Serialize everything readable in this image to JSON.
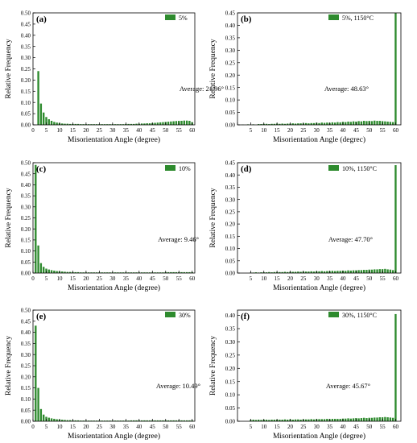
{
  "style": {
    "bar_color": "#2e8b2e"
  },
  "x_label": "Misorientation Angle (degree)",
  "x_label_b": "Misorientation Angle (degrec)",
  "y_label": "Relative Frequency",
  "x_ticks": [
    0,
    5,
    10,
    15,
    20,
    25,
    30,
    35,
    40,
    45,
    50,
    55,
    60
  ],
  "chart_data": [
    {
      "panel": "(a)",
      "type": "bar",
      "legend": "5%",
      "annotation": "Average: 21.96°",
      "xlim": [
        0,
        61
      ],
      "ylim": [
        0,
        0.5
      ],
      "yticks": [
        0.0,
        0.05,
        0.1,
        0.15,
        0.2,
        0.25,
        0.3,
        0.35,
        0.4,
        0.45,
        0.5
      ],
      "x": [
        2,
        3,
        4,
        5,
        6,
        7,
        8,
        9,
        10,
        11,
        12,
        13,
        14,
        15,
        16,
        17,
        18,
        19,
        20,
        21,
        22,
        23,
        24,
        25,
        26,
        27,
        28,
        29,
        30,
        31,
        32,
        33,
        34,
        35,
        36,
        37,
        38,
        39,
        40,
        41,
        42,
        43,
        44,
        45,
        46,
        47,
        48,
        49,
        50,
        51,
        52,
        53,
        54,
        55,
        56,
        57,
        58,
        59,
        60
      ],
      "values": [
        0.24,
        0.095,
        0.055,
        0.035,
        0.025,
        0.018,
        0.013,
        0.01,
        0.008,
        0.006,
        0.005,
        0.005,
        0.004,
        0.004,
        0.004,
        0.004,
        0.003,
        0.003,
        0.003,
        0.003,
        0.003,
        0.003,
        0.003,
        0.003,
        0.003,
        0.003,
        0.003,
        0.003,
        0.003,
        0.003,
        0.003,
        0.003,
        0.003,
        0.004,
        0.004,
        0.004,
        0.004,
        0.005,
        0.005,
        0.006,
        0.006,
        0.007,
        0.007,
        0.008,
        0.009,
        0.01,
        0.011,
        0.012,
        0.013,
        0.014,
        0.015,
        0.016,
        0.017,
        0.018,
        0.018,
        0.019,
        0.019,
        0.018,
        0.012
      ]
    },
    {
      "panel": "(b)",
      "type": "bar",
      "legend": "5%, 1150°C",
      "annotation": "Average: 48.63°",
      "xlim": [
        0,
        62
      ],
      "ylim": [
        0,
        0.45
      ],
      "yticks": [
        0.0,
        0.05,
        0.1,
        0.15,
        0.2,
        0.25,
        0.3,
        0.35,
        0.4,
        0.45
      ],
      "x": [
        2,
        4,
        6,
        8,
        9,
        10,
        11,
        12,
        13,
        14,
        15,
        16,
        17,
        18,
        19,
        20,
        21,
        22,
        23,
        24,
        25,
        26,
        27,
        28,
        29,
        30,
        31,
        32,
        33,
        34,
        35,
        36,
        37,
        38,
        39,
        40,
        41,
        42,
        43,
        44,
        45,
        46,
        47,
        48,
        49,
        50,
        51,
        52,
        53,
        54,
        55,
        56,
        57,
        58,
        59,
        60
      ],
      "values": [
        0.001,
        0.002,
        0.002,
        0.003,
        0.003,
        0.004,
        0.004,
        0.003,
        0.004,
        0.004,
        0.005,
        0.004,
        0.005,
        0.004,
        0.005,
        0.005,
        0.006,
        0.005,
        0.006,
        0.006,
        0.006,
        0.007,
        0.006,
        0.007,
        0.007,
        0.008,
        0.007,
        0.009,
        0.008,
        0.009,
        0.008,
        0.01,
        0.009,
        0.011,
        0.01,
        0.012,
        0.011,
        0.013,
        0.012,
        0.014,
        0.013,
        0.015,
        0.014,
        0.016,
        0.015,
        0.016,
        0.015,
        0.017,
        0.016,
        0.016,
        0.015,
        0.014,
        0.013,
        0.012,
        0.011,
        0.45
      ]
    },
    {
      "panel": "(c)",
      "type": "bar",
      "legend": "10%",
      "annotation": "Average: 9.46°",
      "xlim": [
        0,
        61
      ],
      "ylim": [
        0,
        0.5
      ],
      "yticks": [
        0.0,
        0.05,
        0.1,
        0.15,
        0.2,
        0.25,
        0.3,
        0.35,
        0.4,
        0.45,
        0.5
      ],
      "x": [
        1,
        2,
        3,
        4,
        5,
        6,
        7,
        8,
        9,
        10,
        11,
        12,
        13,
        14,
        15,
        16,
        17,
        18,
        19,
        20,
        21,
        22,
        23,
        24,
        25,
        26,
        27,
        28,
        29,
        30,
        31,
        32,
        33,
        34,
        35,
        36,
        37,
        38,
        39,
        40,
        41,
        42,
        43,
        44,
        45,
        46,
        47,
        48,
        49,
        50,
        51,
        52,
        53,
        54,
        55,
        56,
        57,
        58,
        59,
        60
      ],
      "values": [
        0.49,
        0.125,
        0.045,
        0.028,
        0.02,
        0.016,
        0.013,
        0.011,
        0.009,
        0.008,
        0.007,
        0.006,
        0.005,
        0.005,
        0.004,
        0.004,
        0.004,
        0.003,
        0.003,
        0.003,
        0.003,
        0.003,
        0.003,
        0.003,
        0.003,
        0.003,
        0.003,
        0.003,
        0.003,
        0.003,
        0.003,
        0.003,
        0.003,
        0.003,
        0.003,
        0.003,
        0.003,
        0.003,
        0.003,
        0.003,
        0.003,
        0.003,
        0.003,
        0.003,
        0.003,
        0.003,
        0.003,
        0.003,
        0.003,
        0.004,
        0.004,
        0.004,
        0.004,
        0.004,
        0.004,
        0.004,
        0.004,
        0.004,
        0.004,
        0.004
      ]
    },
    {
      "panel": "(d)",
      "type": "bar",
      "legend": "10%, 1150°C",
      "annotation": "Average: 47.70°",
      "xlim": [
        0,
        62
      ],
      "ylim": [
        0,
        0.45
      ],
      "yticks": [
        0.0,
        0.05,
        0.1,
        0.15,
        0.2,
        0.25,
        0.3,
        0.35,
        0.4,
        0.45
      ],
      "x": [
        5,
        6,
        7,
        8,
        9,
        10,
        11,
        12,
        13,
        14,
        15,
        16,
        17,
        18,
        19,
        20,
        21,
        22,
        23,
        24,
        25,
        26,
        27,
        28,
        29,
        30,
        31,
        32,
        33,
        34,
        35,
        36,
        37,
        38,
        39,
        40,
        41,
        42,
        43,
        44,
        45,
        46,
        47,
        48,
        49,
        50,
        51,
        52,
        53,
        54,
        55,
        56,
        57,
        58,
        59,
        60
      ],
      "values": [
        0.002,
        0.002,
        0.003,
        0.002,
        0.003,
        0.003,
        0.003,
        0.004,
        0.003,
        0.004,
        0.004,
        0.004,
        0.004,
        0.005,
        0.004,
        0.005,
        0.005,
        0.005,
        0.006,
        0.005,
        0.006,
        0.006,
        0.006,
        0.007,
        0.006,
        0.007,
        0.007,
        0.008,
        0.007,
        0.008,
        0.008,
        0.009,
        0.008,
        0.009,
        0.009,
        0.01,
        0.009,
        0.011,
        0.01,
        0.011,
        0.011,
        0.012,
        0.012,
        0.013,
        0.013,
        0.014,
        0.014,
        0.015,
        0.015,
        0.016,
        0.016,
        0.017,
        0.015,
        0.014,
        0.012,
        0.44
      ]
    },
    {
      "panel": "(e)",
      "type": "bar",
      "legend": "30%",
      "annotation": "Average: 10.49°",
      "xlim": [
        0,
        61
      ],
      "ylim": [
        0,
        0.5
      ],
      "yticks": [
        0.0,
        0.05,
        0.1,
        0.15,
        0.2,
        0.25,
        0.3,
        0.35,
        0.4,
        0.45,
        0.5
      ],
      "x": [
        1,
        2,
        3,
        4,
        5,
        6,
        7,
        8,
        9,
        10,
        11,
        12,
        13,
        14,
        15,
        16,
        17,
        18,
        19,
        20,
        21,
        22,
        23,
        24,
        25,
        26,
        27,
        28,
        29,
        30,
        31,
        32,
        33,
        34,
        35,
        36,
        37,
        38,
        39,
        40,
        41,
        42,
        43,
        44,
        45,
        46,
        47,
        48,
        49,
        50,
        51,
        52,
        53,
        54,
        55,
        56,
        57,
        58,
        59,
        60
      ],
      "values": [
        0.43,
        0.15,
        0.055,
        0.03,
        0.02,
        0.016,
        0.013,
        0.011,
        0.009,
        0.008,
        0.007,
        0.006,
        0.005,
        0.005,
        0.004,
        0.004,
        0.004,
        0.003,
        0.003,
        0.003,
        0.003,
        0.003,
        0.003,
        0.003,
        0.003,
        0.003,
        0.003,
        0.003,
        0.003,
        0.003,
        0.003,
        0.003,
        0.003,
        0.003,
        0.003,
        0.003,
        0.004,
        0.004,
        0.004,
        0.004,
        0.004,
        0.004,
        0.004,
        0.004,
        0.004,
        0.004,
        0.004,
        0.004,
        0.004,
        0.004,
        0.004,
        0.004,
        0.004,
        0.004,
        0.004,
        0.004,
        0.004,
        0.004,
        0.004,
        0.004
      ]
    },
    {
      "panel": "(f)",
      "type": "bar",
      "legend": "30%, 1150°C",
      "annotation": "Average: 45.67°",
      "xlim": [
        0,
        62
      ],
      "ylim": [
        0,
        0.42
      ],
      "yticks": [
        0.0,
        0.05,
        0.1,
        0.15,
        0.2,
        0.25,
        0.3,
        0.35,
        0.4
      ],
      "x": [
        5,
        6,
        7,
        8,
        9,
        10,
        11,
        12,
        13,
        14,
        15,
        16,
        17,
        18,
        19,
        20,
        21,
        22,
        23,
        24,
        25,
        26,
        27,
        28,
        29,
        30,
        31,
        32,
        33,
        34,
        35,
        36,
        37,
        38,
        39,
        40,
        41,
        42,
        43,
        44,
        45,
        46,
        47,
        48,
        49,
        50,
        51,
        52,
        53,
        54,
        55,
        56,
        57,
        58,
        59,
        60
      ],
      "values": [
        0.005,
        0.006,
        0.005,
        0.006,
        0.005,
        0.006,
        0.006,
        0.005,
        0.006,
        0.006,
        0.006,
        0.006,
        0.006,
        0.007,
        0.006,
        0.007,
        0.006,
        0.007,
        0.007,
        0.006,
        0.007,
        0.007,
        0.007,
        0.008,
        0.007,
        0.008,
        0.008,
        0.008,
        0.008,
        0.009,
        0.008,
        0.009,
        0.009,
        0.009,
        0.009,
        0.01,
        0.01,
        0.011,
        0.01,
        0.011,
        0.012,
        0.011,
        0.012,
        0.013,
        0.012,
        0.013,
        0.013,
        0.014,
        0.014,
        0.015,
        0.015,
        0.016,
        0.015,
        0.014,
        0.013,
        0.405
      ]
    }
  ]
}
